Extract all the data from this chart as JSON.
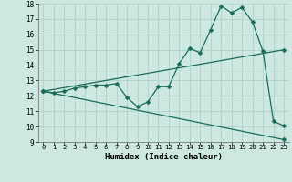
{
  "title": "",
  "xlabel": "Humidex (Indice chaleur)",
  "bg_color": "#cce8e0",
  "grid_color": "#aaccC4",
  "line_color": "#1a6b5a",
  "xlim": [
    -0.5,
    23.5
  ],
  "ylim": [
    9,
    18
  ],
  "xticks": [
    0,
    1,
    2,
    3,
    4,
    5,
    6,
    7,
    8,
    9,
    10,
    11,
    12,
    13,
    14,
    15,
    16,
    17,
    18,
    19,
    20,
    21,
    22,
    23
  ],
  "yticks": [
    9,
    10,
    11,
    12,
    13,
    14,
    15,
    16,
    17,
    18
  ],
  "line1_x": [
    0,
    1,
    2,
    3,
    4,
    5,
    6,
    7,
    8,
    9,
    10,
    11,
    12,
    13,
    14,
    15,
    16,
    17,
    18,
    19,
    20,
    21,
    22,
    23
  ],
  "line1_y": [
    12.3,
    12.2,
    12.3,
    12.5,
    12.6,
    12.7,
    12.7,
    12.8,
    11.9,
    11.3,
    11.6,
    12.6,
    12.6,
    14.1,
    15.1,
    14.8,
    16.3,
    17.85,
    17.4,
    17.75,
    16.8,
    14.9,
    10.35,
    10.05
  ],
  "line2_x": [
    0,
    23
  ],
  "line2_y": [
    12.3,
    15.0
  ],
  "line3_x": [
    0,
    23
  ],
  "line3_y": [
    12.3,
    9.15
  ],
  "markersize": 2.5,
  "linewidth": 0.9
}
